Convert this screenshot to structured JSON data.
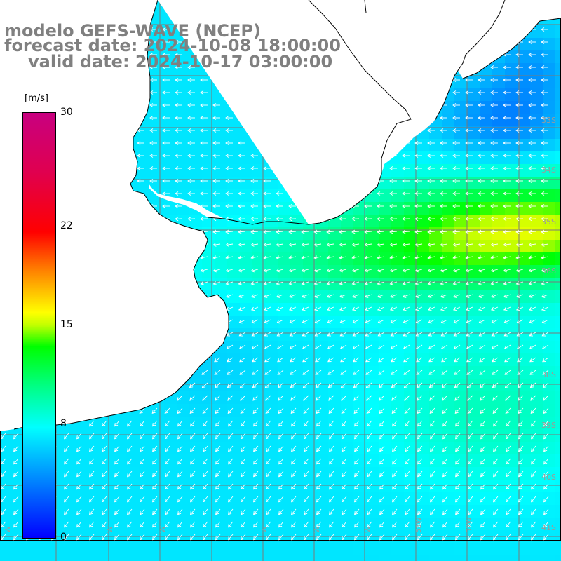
{
  "title": {
    "line1": "modelo GEFS-WAVE (NCEP)",
    "line2": "forecast date: 2024-10-08 18:00:00",
    "line3": "valid date: 2024-10-17 03:00:00"
  },
  "colorbar": {
    "unit": "[m/s]",
    "ticks": [
      {
        "value": 30,
        "label": "30"
      },
      {
        "value": 22,
        "label": "22"
      },
      {
        "value": 15,
        "label": "15"
      },
      {
        "value": 8,
        "label": "8"
      },
      {
        "value": 0,
        "label": "0"
      }
    ],
    "min": 0,
    "max": 30
  },
  "lat_labels": [
    "33S",
    "34S",
    "35S",
    "36S",
    "38S",
    "39S",
    "40S",
    "41S"
  ],
  "lon_labels": [
    "W",
    "W",
    "W",
    "W",
    "W",
    "W",
    "53W",
    "52W"
  ],
  "colors": {
    "land": "#ffffff",
    "coast": "#000000",
    "grid": "#808080",
    "title": "#808080",
    "arrows": "#ffffff"
  }
}
